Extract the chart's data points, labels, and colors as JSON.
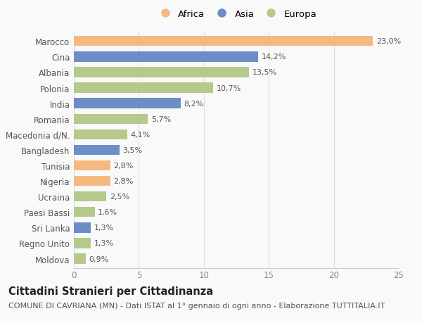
{
  "countries": [
    "Marocco",
    "Cina",
    "Albania",
    "Polonia",
    "India",
    "Romania",
    "Macedonia d/N.",
    "Bangladesh",
    "Tunisia",
    "Nigeria",
    "Ucraina",
    "Paesi Bassi",
    "Sri Lanka",
    "Regno Unito",
    "Moldova"
  ],
  "values": [
    23.0,
    14.2,
    13.5,
    10.7,
    8.2,
    5.7,
    4.1,
    3.5,
    2.8,
    2.8,
    2.5,
    1.6,
    1.3,
    1.3,
    0.9
  ],
  "continents": [
    "Africa",
    "Asia",
    "Europa",
    "Europa",
    "Asia",
    "Europa",
    "Europa",
    "Asia",
    "Africa",
    "Africa",
    "Europa",
    "Europa",
    "Asia",
    "Europa",
    "Europa"
  ],
  "labels": [
    "23,0%",
    "14,2%",
    "13,5%",
    "10,7%",
    "8,2%",
    "5,7%",
    "4,1%",
    "3,5%",
    "2,8%",
    "2,8%",
    "2,5%",
    "1,6%",
    "1,3%",
    "1,3%",
    "0,9%"
  ],
  "colors": {
    "Africa": "#f5b980",
    "Asia": "#6b8ec7",
    "Europa": "#b5c98a"
  },
  "legend_labels": [
    "Africa",
    "Asia",
    "Europa"
  ],
  "title": "Cittadini Stranieri per Cittadinanza",
  "subtitle": "COMUNE DI CAVRIANA (MN) - Dati ISTAT al 1° gennaio di ogni anno - Elaborazione TUTTITALIA.IT",
  "xlim": [
    0,
    25
  ],
  "xticks": [
    0,
    5,
    10,
    15,
    20,
    25
  ],
  "background_color": "#f9f9f9",
  "title_fontsize": 10.5,
  "subtitle_fontsize": 8,
  "label_fontsize": 8,
  "tick_fontsize": 8.5,
  "legend_fontsize": 9.5
}
